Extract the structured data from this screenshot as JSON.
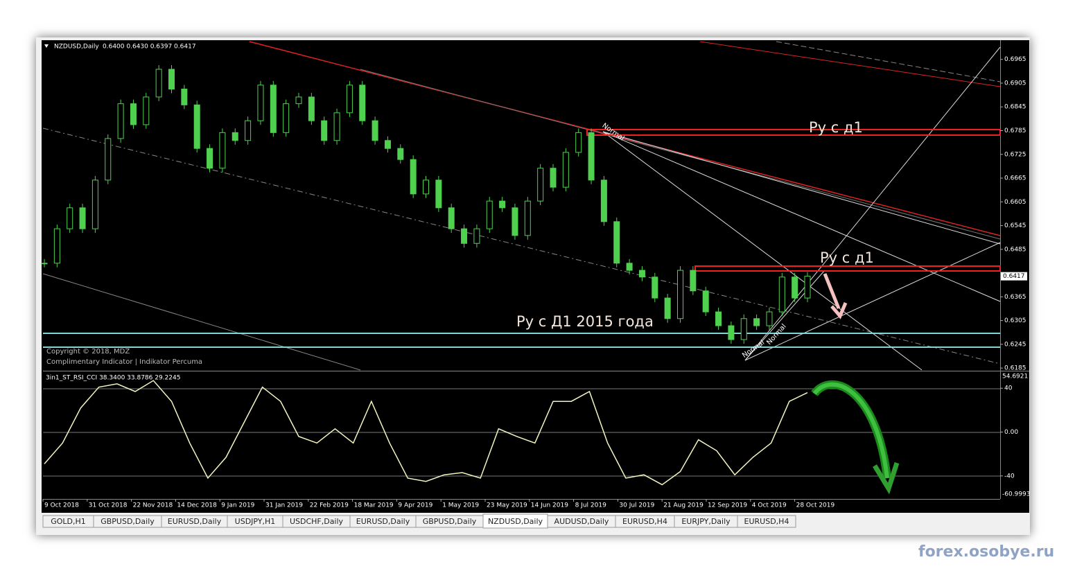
{
  "header": {
    "symbol": "NZDUSD,Daily",
    "ohlc": "0.6400 0.6430 0.6397 0.6417"
  },
  "price_chart": {
    "closes": [
      0.645,
      0.6537,
      0.659,
      0.6537,
      0.666,
      0.6765,
      0.6853,
      0.68,
      0.687,
      0.694,
      0.689,
      0.685,
      0.674,
      0.669,
      0.678,
      0.676,
      0.681,
      0.69,
      0.678,
      0.6853,
      0.687,
      0.681,
      0.676,
      0.683,
      0.69,
      0.681,
      0.676,
      0.674,
      0.6712,
      0.6625,
      0.666,
      0.659,
      0.6537,
      0.65,
      0.6537,
      0.6607,
      0.659,
      0.652,
      0.6607,
      0.669,
      0.6642,
      0.673,
      0.678,
      0.666,
      0.6555,
      0.645,
      0.6432,
      0.6415,
      0.6362,
      0.631,
      0.6432,
      0.638,
      0.6327,
      0.6292,
      0.6257,
      0.631,
      0.6292,
      0.6327,
      0.6415,
      0.6362,
      0.6417
    ],
    "ylim": [
      0.618,
      0.701
    ],
    "yticks": [
      0.6965,
      0.6905,
      0.6845,
      0.6785,
      0.6725,
      0.6665,
      0.6605,
      0.6545,
      0.6485,
      0.6365,
      0.6305,
      0.6245,
      0.6185
    ],
    "current_price": 0.6417,
    "copyright": "Copyright © 2018, MDZ",
    "indicator_note": "Complimentary Indicator | Indikator Percuma",
    "annotations": [
      "Ру с д1",
      "Ру с д1",
      "Ру с Д1 2015 года"
    ],
    "drawing_labels": [
      "Normal",
      "Normal",
      "Normal"
    ]
  },
  "indicator": {
    "name_line": "3in1_ST_RSI_CCI 38.3400 33.8786 29.2245",
    "values": [
      -29,
      -10,
      22,
      41,
      44,
      37,
      47,
      28,
      -10,
      -42,
      -23,
      9,
      41,
      28,
      -4,
      -10,
      3,
      -10,
      28,
      -10,
      -42,
      -45,
      -39,
      -37,
      -42,
      3,
      -4,
      -10,
      28,
      28,
      37,
      -10,
      -42,
      -39,
      -48,
      -36,
      -7,
      -17,
      -39,
      -23,
      -10,
      28,
      36
    ],
    "ylim": [
      -60.9993,
      54.6921
    ],
    "yticks": [
      40,
      {
        "value": 0,
        "label": "0.00"
      },
      -40
    ]
  },
  "dates": [
    "9 Oct 2018",
    "31 Oct 2018",
    "22 Nov 2018",
    "14 Dec 2018",
    "9 Jan 2019",
    "31 Jan 2019",
    "22 Feb 2019",
    "18 Mar 2019",
    "9 Apr 2019",
    "1 May 2019",
    "23 May 2019",
    "14 Jun 2019",
    "8 Jul 2019",
    "30 Jul 2019",
    "21 Aug 2019",
    "12 Sep 2019",
    "4 Oct 2019",
    "28 Oct 2019"
  ],
  "tabs": [
    "GOLD,H1",
    "GBPUSD,Daily",
    "EURUSD,Daily",
    "USDJPY,H1",
    "USDCHF,Daily",
    "EURUSD,Daily",
    "GBPUSD,Daily",
    "NZDUSD,Daily",
    "AUDUSD,Daily",
    "EURUSD,H4",
    "EURJPY,Daily",
    "EURUSD,H4"
  ],
  "active_tab": 7,
  "watermark": "forex.osobye.ru"
}
